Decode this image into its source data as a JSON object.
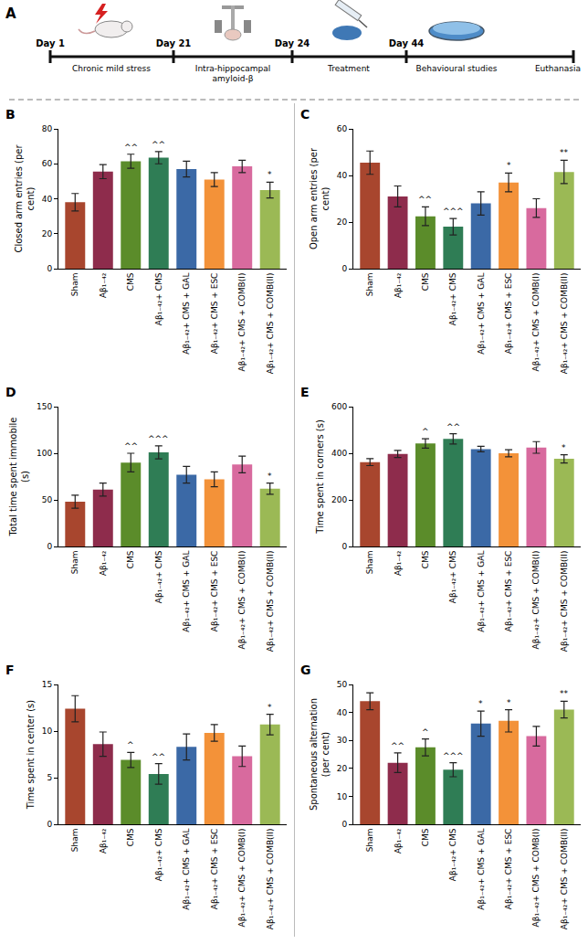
{
  "timeline": {
    "panel_label": "A",
    "days": [
      "Day 1",
      "Day 21",
      "Day 24",
      "Day 44"
    ],
    "steps": [
      "Chronic mild stress",
      "Intra-hippocampal amyloid-β",
      "Treatment",
      "Behavioural studies",
      "Euthanasia"
    ]
  },
  "chart_data": [
    {
      "type": "bar",
      "panel_label": "B",
      "y_label": "Closed arm entries (per cent)",
      "categories": [
        "Sham",
        "Aβ₁₋₄₂",
        "CMS",
        "Aβ₁₋₄₂+ CMS",
        "Aβ₁₋₄₂+ CMS + GAL",
        "Aβ₁₋₄₂+ CMS + ESC",
        "Aβ₁₋₄₂+ CMS + COMB(I)",
        "Aβ₁₋₄₂+ CMS + COMB(II)"
      ],
      "values": [
        38,
        55.5,
        61.5,
        63.5,
        57,
        51,
        58.5,
        45
      ],
      "error": [
        5,
        4,
        4,
        3.5,
        4.5,
        4,
        3.5,
        4.5
      ],
      "annotations": [
        null,
        null,
        "^^",
        "^^",
        null,
        null,
        null,
        "*"
      ],
      "colors": [
        "#a8462e",
        "#8e2c4c",
        "#5b8c2a",
        "#2f7d55",
        "#3b69a6",
        "#f39239",
        "#d86a9e",
        "#9bb955"
      ],
      "ylim": [
        0,
        80
      ],
      "yticks": [
        0,
        20,
        40,
        60,
        80
      ]
    },
    {
      "type": "bar",
      "panel_label": "C",
      "y_label": "Open arm entries (per cent)",
      "categories": [
        "Sham",
        "Aβ₁₋₄₂",
        "CMS",
        "Aβ₁₋₄₂+ CMS",
        "Aβ₁₋₄₂+ CMS + GAL",
        "Aβ₁₋₄₂+ CMS + ESC",
        "Aβ₁₋₄₂+ CMS + COMB(I)",
        "Aβ₁₋₄₂+ CMS + COMB(II)"
      ],
      "values": [
        45.5,
        31,
        22.5,
        18,
        28,
        37,
        26,
        41.5
      ],
      "error": [
        5,
        4.5,
        4,
        3.5,
        5,
        4,
        4,
        5
      ],
      "annotations": [
        null,
        null,
        "^^",
        "^^^",
        null,
        "*",
        null,
        "**"
      ],
      "colors": [
        "#a8462e",
        "#8e2c4c",
        "#5b8c2a",
        "#2f7d55",
        "#3b69a6",
        "#f39239",
        "#d86a9e",
        "#9bb955"
      ],
      "ylim": [
        0,
        60
      ],
      "yticks": [
        0,
        20,
        40,
        60
      ]
    },
    {
      "type": "bar",
      "panel_label": "D",
      "y_label": "Total time spent immobile (s)",
      "categories": [
        "Sham",
        "Aβ₁₋₄₂",
        "CMS",
        "Aβ₁₋₄₂+ CMS",
        "Aβ₁₋₄₂+ CMS + GAL",
        "Aβ₁₋₄₂+ CMS + ESC",
        "Aβ₁₋₄₂+ CMS + COMB(I)",
        "Aβ₁₋₄₂+ CMS + COMB(II)"
      ],
      "values": [
        48,
        61,
        90,
        101,
        77,
        72,
        88,
        62
      ],
      "error": [
        7,
        7,
        10,
        7,
        9,
        8,
        9,
        6
      ],
      "annotations": [
        null,
        null,
        "^^",
        "^^^",
        null,
        null,
        null,
        "*"
      ],
      "colors": [
        "#a8462e",
        "#8e2c4c",
        "#5b8c2a",
        "#2f7d55",
        "#3b69a6",
        "#f39239",
        "#d86a9e",
        "#9bb955"
      ],
      "ylim": [
        0,
        150
      ],
      "yticks": [
        0,
        50,
        100,
        150
      ]
    },
    {
      "type": "bar",
      "panel_label": "E",
      "y_label": "Time spent in corners (s)",
      "categories": [
        "Sham",
        "Aβ₁₋₄₂",
        "CMS",
        "Aβ₁₋₄₂+ CMS",
        "Aβ₁₋₄₂+ CMS + GAL",
        "Aβ₁₋₄₂+ CMS + ESC",
        "Aβ₁₋₄₂+ CMS + COMB(I)",
        "Aβ₁₋₄₂+ CMS + COMB(II)"
      ],
      "values": [
        362,
        397,
        442,
        462,
        418,
        400,
        425,
        376
      ],
      "error": [
        15,
        15,
        20,
        22,
        12,
        15,
        25,
        18
      ],
      "annotations": [
        null,
        null,
        "^",
        "^^",
        null,
        null,
        null,
        "*"
      ],
      "colors": [
        "#a8462e",
        "#8e2c4c",
        "#5b8c2a",
        "#2f7d55",
        "#3b69a6",
        "#f39239",
        "#d86a9e",
        "#9bb955"
      ],
      "ylim": [
        0,
        600
      ],
      "yticks": [
        0,
        200,
        400,
        600
      ]
    },
    {
      "type": "bar",
      "panel_label": "F",
      "y_label": "Time spent in center (s)",
      "categories": [
        "Sham",
        "Aβ₁₋₄₂",
        "CMS",
        "Aβ₁₋₄₂+ CMS",
        "Aβ₁₋₄₂+ CMS + GAL",
        "Aβ₁₋₄₂+ CMS + ESC",
        "Aβ₁₋₄₂+ CMS + COMB(I)",
        "Aβ₁₋₄₂+ CMS + COMB(II)"
      ],
      "values": [
        12.4,
        8.6,
        6.9,
        5.4,
        8.3,
        9.8,
        7.3,
        10.7
      ],
      "error": [
        1.4,
        1.3,
        0.8,
        1.1,
        1.4,
        0.9,
        1.1,
        1.1
      ],
      "annotations": [
        null,
        null,
        "^",
        "^^",
        null,
        null,
        null,
        "*"
      ],
      "colors": [
        "#a8462e",
        "#8e2c4c",
        "#5b8c2a",
        "#2f7d55",
        "#3b69a6",
        "#f39239",
        "#d86a9e",
        "#9bb955"
      ],
      "ylim": [
        0,
        15
      ],
      "yticks": [
        0,
        5,
        10,
        15
      ]
    },
    {
      "type": "bar",
      "panel_label": "G",
      "y_label": "Spontaneous alternation (per cent)",
      "categories": [
        "Sham",
        "Aβ₁₋₄₂",
        "CMS",
        "Aβ₁₋₄₂+ CMS",
        "Aβ₁₋₄₂+ CMS + GAL",
        "Aβ₁₋₄₂+ CMS + ESC",
        "Aβ₁₋₄₂+ CMS + COMB(I)",
        "Aβ₁₋₄₂+ CMS + COMB(II)"
      ],
      "values": [
        44,
        22,
        27.5,
        19.5,
        36,
        37,
        31.5,
        41
      ],
      "error": [
        3,
        3.5,
        3,
        2.5,
        4.5,
        4,
        3.5,
        3
      ],
      "annotations": [
        null,
        "^^",
        "^",
        "^^^",
        "*",
        "*",
        null,
        "**"
      ],
      "colors": [
        "#a8462e",
        "#8e2c4c",
        "#5b8c2a",
        "#2f7d55",
        "#3b69a6",
        "#f39239",
        "#d86a9e",
        "#9bb955"
      ],
      "ylim": [
        0,
        50
      ],
      "yticks": [
        0,
        10,
        20,
        30,
        40,
        50
      ]
    }
  ]
}
